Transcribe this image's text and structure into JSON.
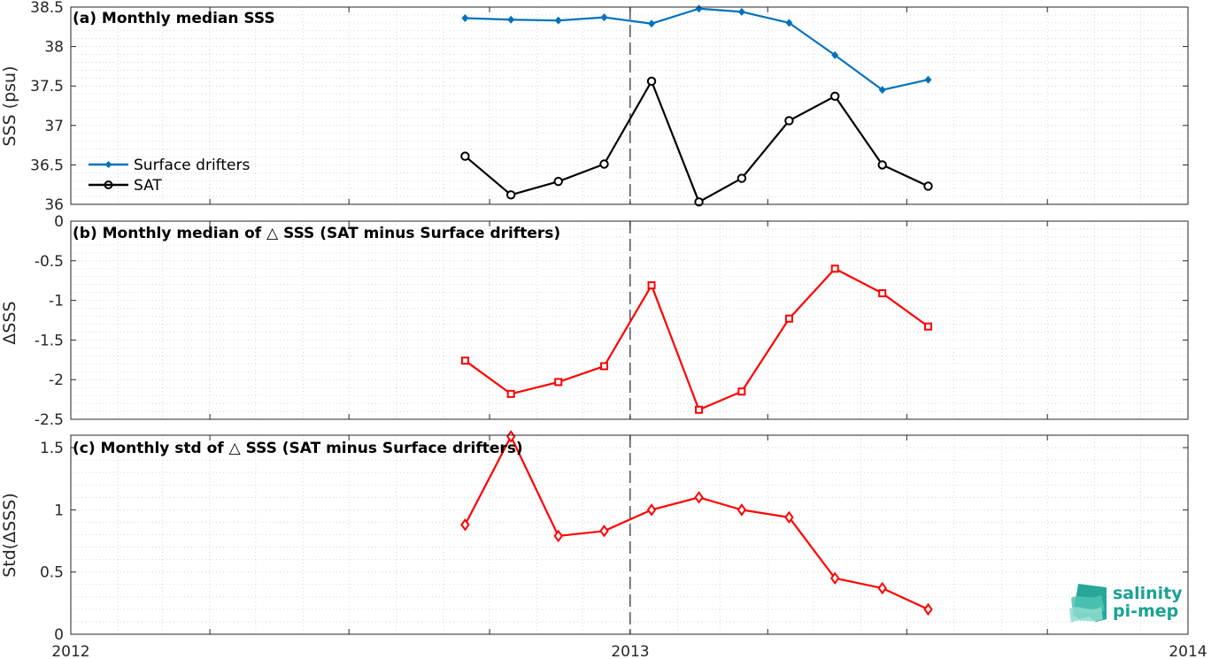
{
  "colors": {
    "drifters": "#0072BD",
    "sat": "#000000",
    "delta": "#FF0000",
    "grid": "#cfcfcf",
    "logo": "#1aa294"
  },
  "x_ticks": [
    "2012",
    "2013",
    "2014"
  ],
  "logo": {
    "line1": "salinity",
    "line2": "pi-mep"
  },
  "chart_data": [
    {
      "type": "line",
      "title": "(a) Monthly median SSS",
      "ylabel": "SSS (psu)",
      "xlim": [
        "2012-01-01",
        "2014-01-01"
      ],
      "ylim": [
        36,
        38.5
      ],
      "y_ticks": [
        "36",
        "36.5",
        "37",
        "37.5",
        "38",
        "38.5"
      ],
      "grid": "minor-dotted",
      "legend": "left",
      "x": [
        "2012-09-15",
        "2012-10-15",
        "2012-11-15",
        "2012-12-15",
        "2013-01-15",
        "2013-02-15",
        "2013-03-15",
        "2013-04-15",
        "2013-05-15",
        "2013-06-15",
        "2013-07-15"
      ],
      "series": [
        {
          "name": "Surface drifters",
          "values": [
            38.36,
            38.34,
            38.33,
            38.37,
            38.29,
            38.48,
            38.44,
            38.3,
            37.89,
            37.45,
            37.58
          ]
        },
        {
          "name": "SAT",
          "values": [
            36.61,
            36.12,
            36.29,
            36.51,
            37.56,
            36.03,
            36.33,
            37.06,
            37.37,
            36.5,
            36.23
          ]
        }
      ]
    },
    {
      "type": "line",
      "title": "(b) Monthly median of △ SSS (SAT minus Surface drifters)",
      "ylabel": "ΔSSS",
      "xlim": [
        "2012-01-01",
        "2014-01-01"
      ],
      "ylim": [
        -2.5,
        0
      ],
      "y_ticks": [
        "-2.5",
        "-2",
        "-1.5",
        "-1",
        "-0.5",
        "0"
      ],
      "grid": "minor-dotted",
      "x": [
        "2012-09-15",
        "2012-10-15",
        "2012-11-15",
        "2012-12-15",
        "2013-01-15",
        "2013-02-15",
        "2013-03-15",
        "2013-04-15",
        "2013-05-15",
        "2013-06-15",
        "2013-07-15"
      ],
      "series": [
        {
          "values": [
            -1.76,
            -2.18,
            -2.03,
            -1.83,
            -0.81,
            -2.38,
            -2.15,
            -1.23,
            -0.6,
            -0.91,
            -1.33
          ]
        }
      ]
    },
    {
      "type": "line",
      "title": "(c) Monthly std of △ SSS (SAT minus Surface drifters)",
      "ylabel": "Std(ΔSSS)",
      "xlim": [
        "2012-01-01",
        "2014-01-01"
      ],
      "ylim": [
        0,
        1.6
      ],
      "y_ticks": [
        "0",
        "0.5",
        "1",
        "1.5"
      ],
      "grid": "minor-dotted",
      "x": [
        "2012-09-15",
        "2012-10-15",
        "2012-11-15",
        "2012-12-15",
        "2013-01-15",
        "2013-02-15",
        "2013-03-15",
        "2013-04-15",
        "2013-05-15",
        "2013-06-15",
        "2013-07-15"
      ],
      "series": [
        {
          "values": [
            0.88,
            1.59,
            0.79,
            0.83,
            1.0,
            1.1,
            1.0,
            0.94,
            0.45,
            0.37,
            0.2
          ]
        }
      ]
    }
  ]
}
